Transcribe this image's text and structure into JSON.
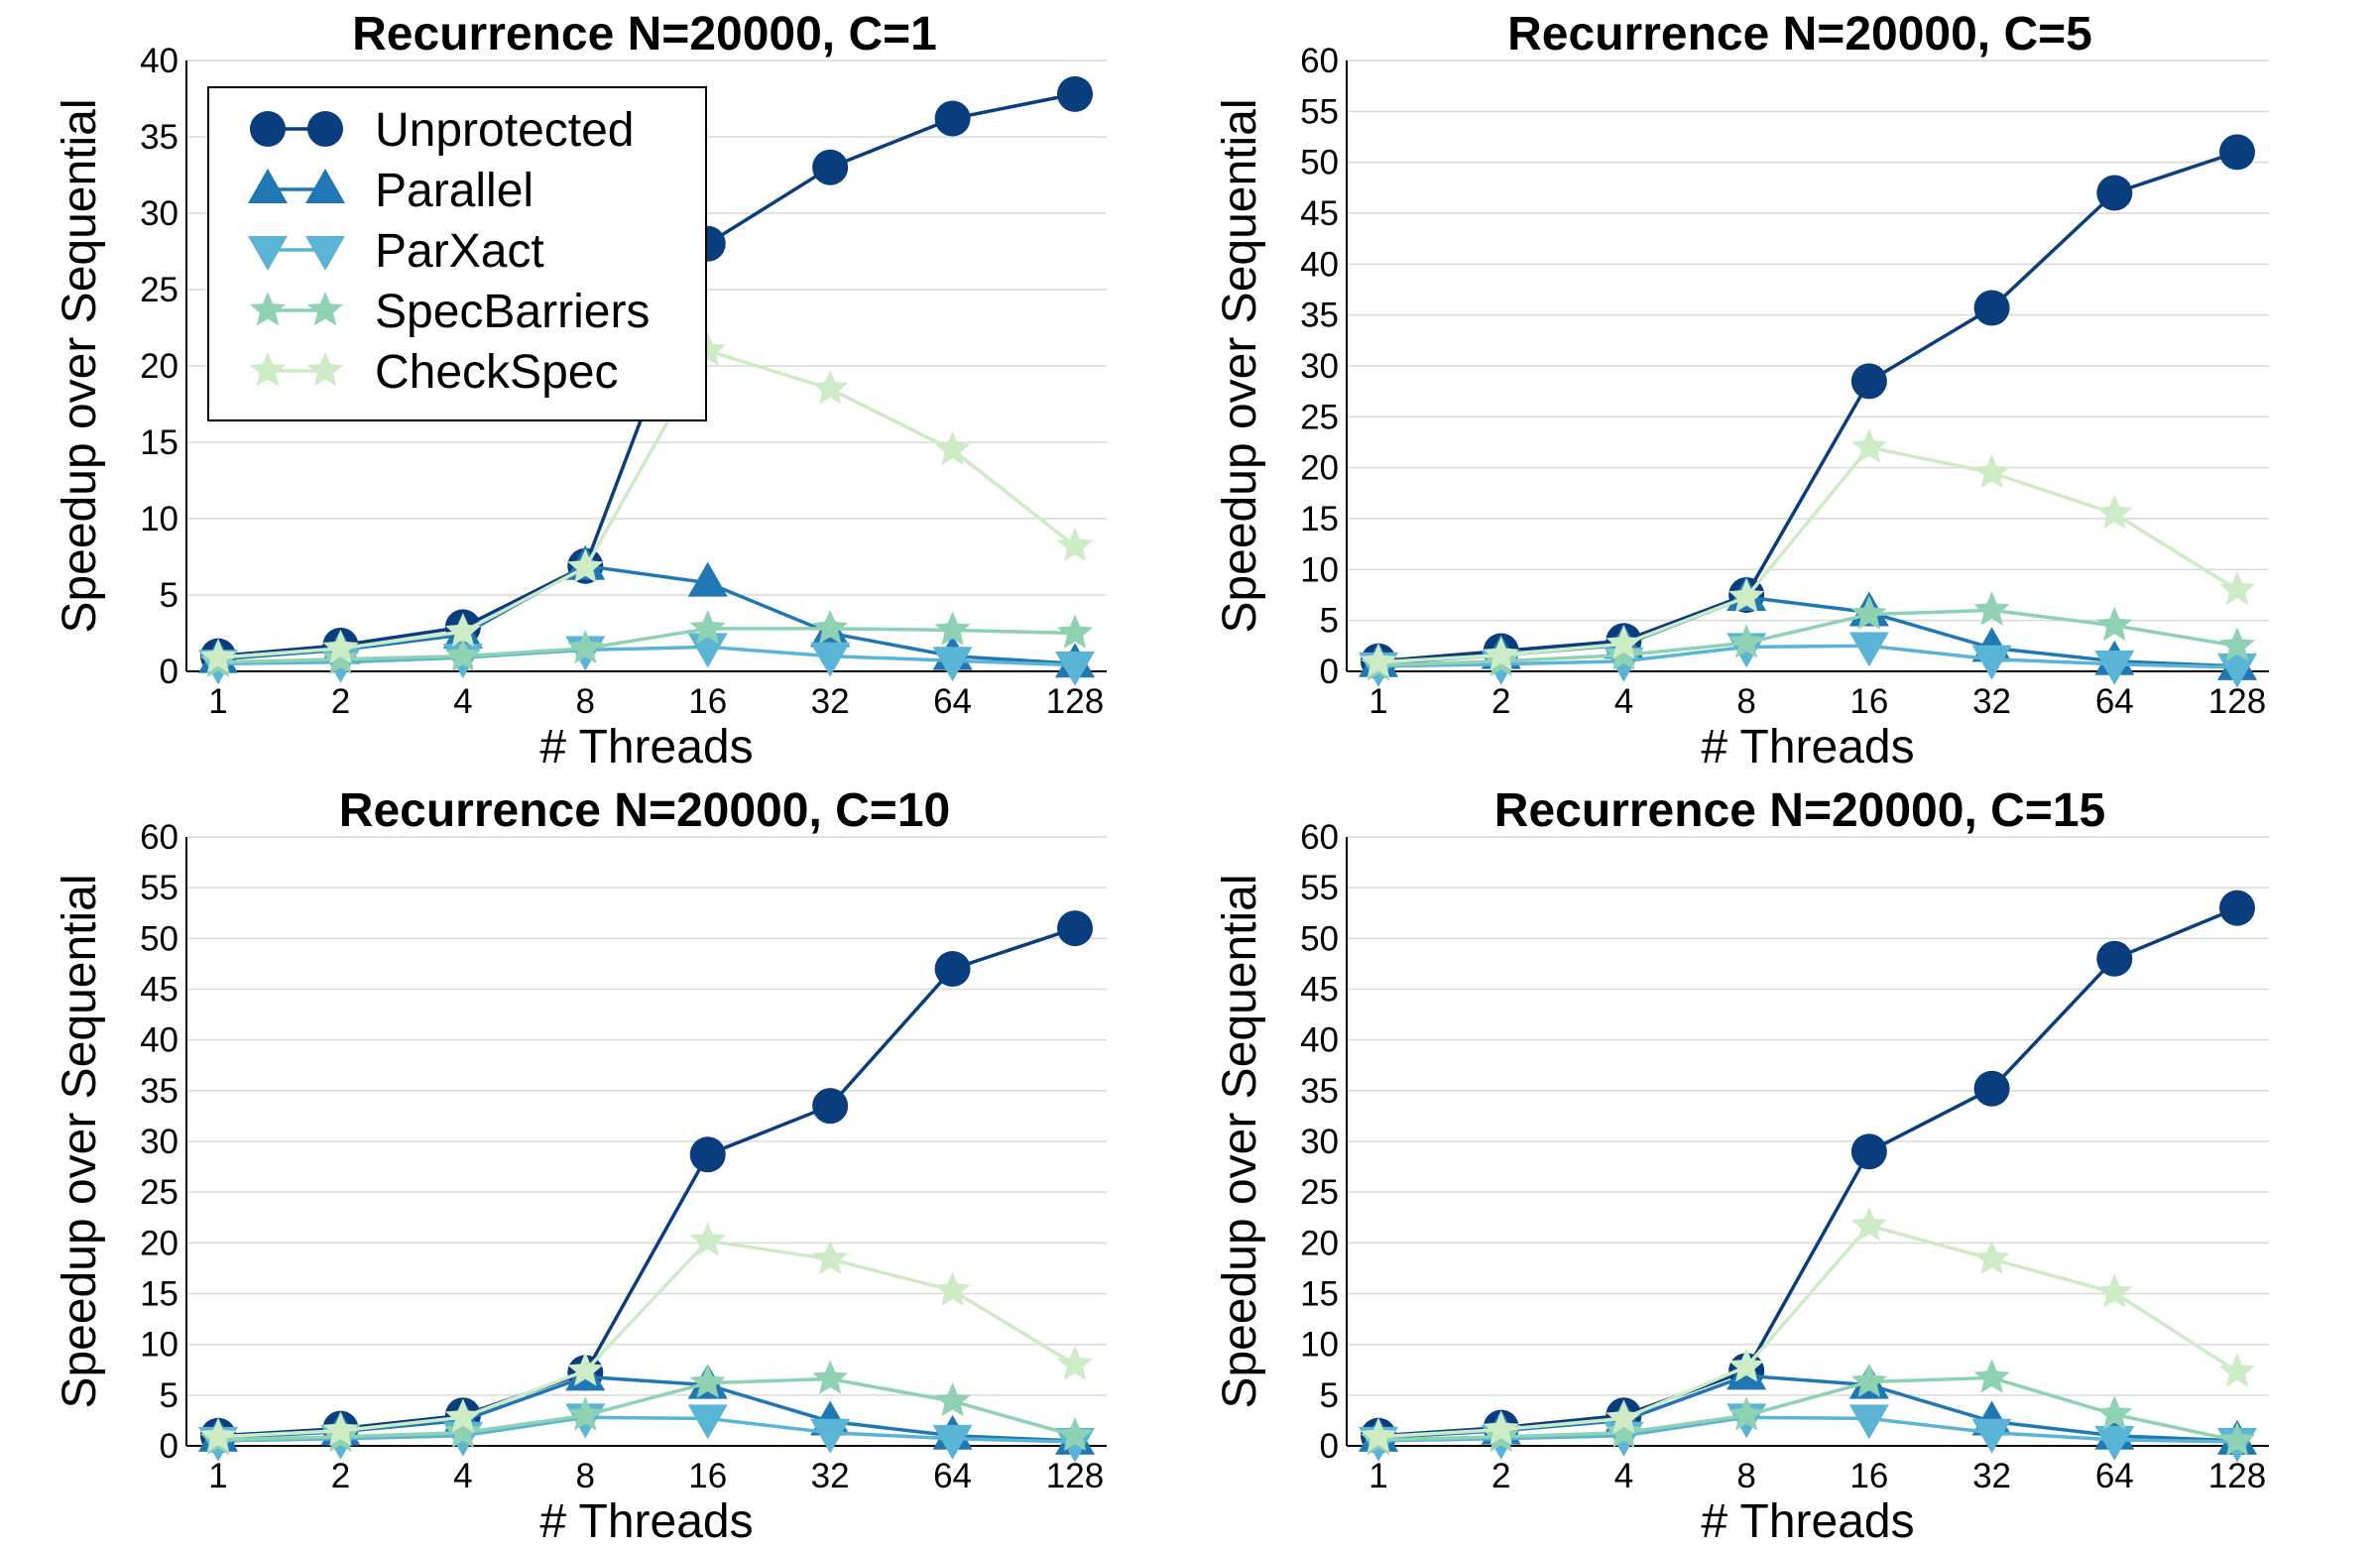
{
  "chart_data": [
    {
      "type": "line",
      "title": "Recurrence N=20000, C=1",
      "xlabel": "# Threads",
      "ylabel": "Speedup over Sequential",
      "categories": [
        "1",
        "2",
        "4",
        "8",
        "16",
        "32",
        "64",
        "128"
      ],
      "ylim": [
        0,
        40
      ],
      "ytick_step": 5,
      "grid": true,
      "legend": "top-left",
      "series": [
        {
          "name": "Unprotected",
          "values": [
            1.0,
            1.7,
            2.9,
            6.9,
            28.0,
            33.0,
            36.2,
            37.8
          ]
        },
        {
          "name": "Parallel",
          "values": [
            0.8,
            1.4,
            2.4,
            6.9,
            5.8,
            2.5,
            1.0,
            0.5
          ]
        },
        {
          "name": "ParXact",
          "values": [
            0.5,
            0.6,
            0.9,
            1.4,
            1.6,
            1.0,
            0.7,
            0.4
          ]
        },
        {
          "name": "SpecBarriers",
          "values": [
            0.6,
            0.8,
            1.0,
            1.5,
            2.8,
            2.8,
            2.7,
            2.5
          ]
        },
        {
          "name": "CheckSpec",
          "values": [
            0.9,
            1.5,
            2.6,
            6.8,
            21.0,
            18.5,
            14.5,
            8.2
          ]
        }
      ]
    },
    {
      "type": "line",
      "title": "Recurrence N=20000, C=5",
      "xlabel": "# Threads",
      "ylabel": "Speedup over Sequential",
      "categories": [
        "1",
        "2",
        "4",
        "8",
        "16",
        "32",
        "64",
        "128"
      ],
      "ylim": [
        0,
        60
      ],
      "ytick_step": 5,
      "grid": true,
      "series": [
        {
          "name": "Unprotected",
          "values": [
            1.0,
            2.0,
            3.0,
            7.5,
            28.5,
            35.7,
            47.0,
            51.0
          ]
        },
        {
          "name": "Parallel",
          "values": [
            0.8,
            1.6,
            2.6,
            7.3,
            5.8,
            2.3,
            1.0,
            0.5
          ]
        },
        {
          "name": "ParXact",
          "values": [
            0.5,
            0.7,
            1.0,
            2.4,
            2.5,
            1.2,
            0.7,
            0.4
          ]
        },
        {
          "name": "SpecBarriers",
          "values": [
            0.6,
            1.0,
            1.6,
            2.8,
            5.6,
            6.0,
            4.5,
            2.5
          ]
        },
        {
          "name": "CheckSpec",
          "values": [
            0.9,
            1.6,
            2.7,
            7.3,
            22.0,
            19.5,
            15.5,
            8.0
          ]
        }
      ]
    },
    {
      "type": "line",
      "title": "Recurrence N=20000, C=10",
      "xlabel": "# Threads",
      "ylabel": "Speedup over Sequential",
      "categories": [
        "1",
        "2",
        "4",
        "8",
        "16",
        "32",
        "64",
        "128"
      ],
      "ylim": [
        0,
        60
      ],
      "ytick_step": 5,
      "grid": true,
      "series": [
        {
          "name": "Unprotected",
          "values": [
            1.0,
            1.7,
            3.0,
            7.2,
            28.7,
            33.5,
            47.0,
            51.0
          ]
        },
        {
          "name": "Parallel",
          "values": [
            0.8,
            1.4,
            2.5,
            6.8,
            6.0,
            2.4,
            1.0,
            0.5
          ]
        },
        {
          "name": "ParXact",
          "values": [
            0.5,
            0.7,
            1.0,
            2.8,
            2.7,
            1.3,
            0.7,
            0.4
          ]
        },
        {
          "name": "SpecBarriers",
          "values": [
            0.6,
            0.9,
            1.3,
            3.0,
            6.2,
            6.6,
            4.4,
            1.0
          ]
        },
        {
          "name": "CheckSpec",
          "values": [
            0.9,
            1.5,
            2.8,
            7.4,
            20.2,
            18.4,
            15.3,
            8.0
          ]
        }
      ]
    },
    {
      "type": "line",
      "title": "Recurrence N=20000, C=15",
      "xlabel": "# Threads",
      "ylabel": "Speedup over Sequential",
      "categories": [
        "1",
        "2",
        "4",
        "8",
        "16",
        "32",
        "64",
        "128"
      ],
      "ylim": [
        0,
        60
      ],
      "ytick_step": 5,
      "grid": true,
      "series": [
        {
          "name": "Unprotected",
          "values": [
            1.0,
            1.8,
            3.0,
            7.4,
            29.0,
            35.2,
            48.0,
            53.0
          ]
        },
        {
          "name": "Parallel",
          "values": [
            0.8,
            1.5,
            2.5,
            6.9,
            6.0,
            2.4,
            1.0,
            0.5
          ]
        },
        {
          "name": "ParXact",
          "values": [
            0.5,
            0.7,
            1.0,
            2.8,
            2.7,
            1.3,
            0.6,
            0.4
          ]
        },
        {
          "name": "SpecBarriers",
          "values": [
            0.6,
            0.9,
            1.3,
            3.0,
            6.3,
            6.7,
            3.1,
            0.5
          ]
        },
        {
          "name": "CheckSpec",
          "values": [
            0.9,
            1.6,
            2.7,
            7.8,
            21.7,
            18.4,
            15.1,
            7.3
          ]
        }
      ]
    }
  ],
  "style": {
    "series_colors": [
      "#0a3d7e",
      "#1f78b4",
      "#5ab4d6",
      "#8fd1b3",
      "#cdebc5"
    ],
    "series_markers": [
      "circle",
      "triangle-up",
      "triangle-down",
      "star",
      "star"
    ]
  }
}
